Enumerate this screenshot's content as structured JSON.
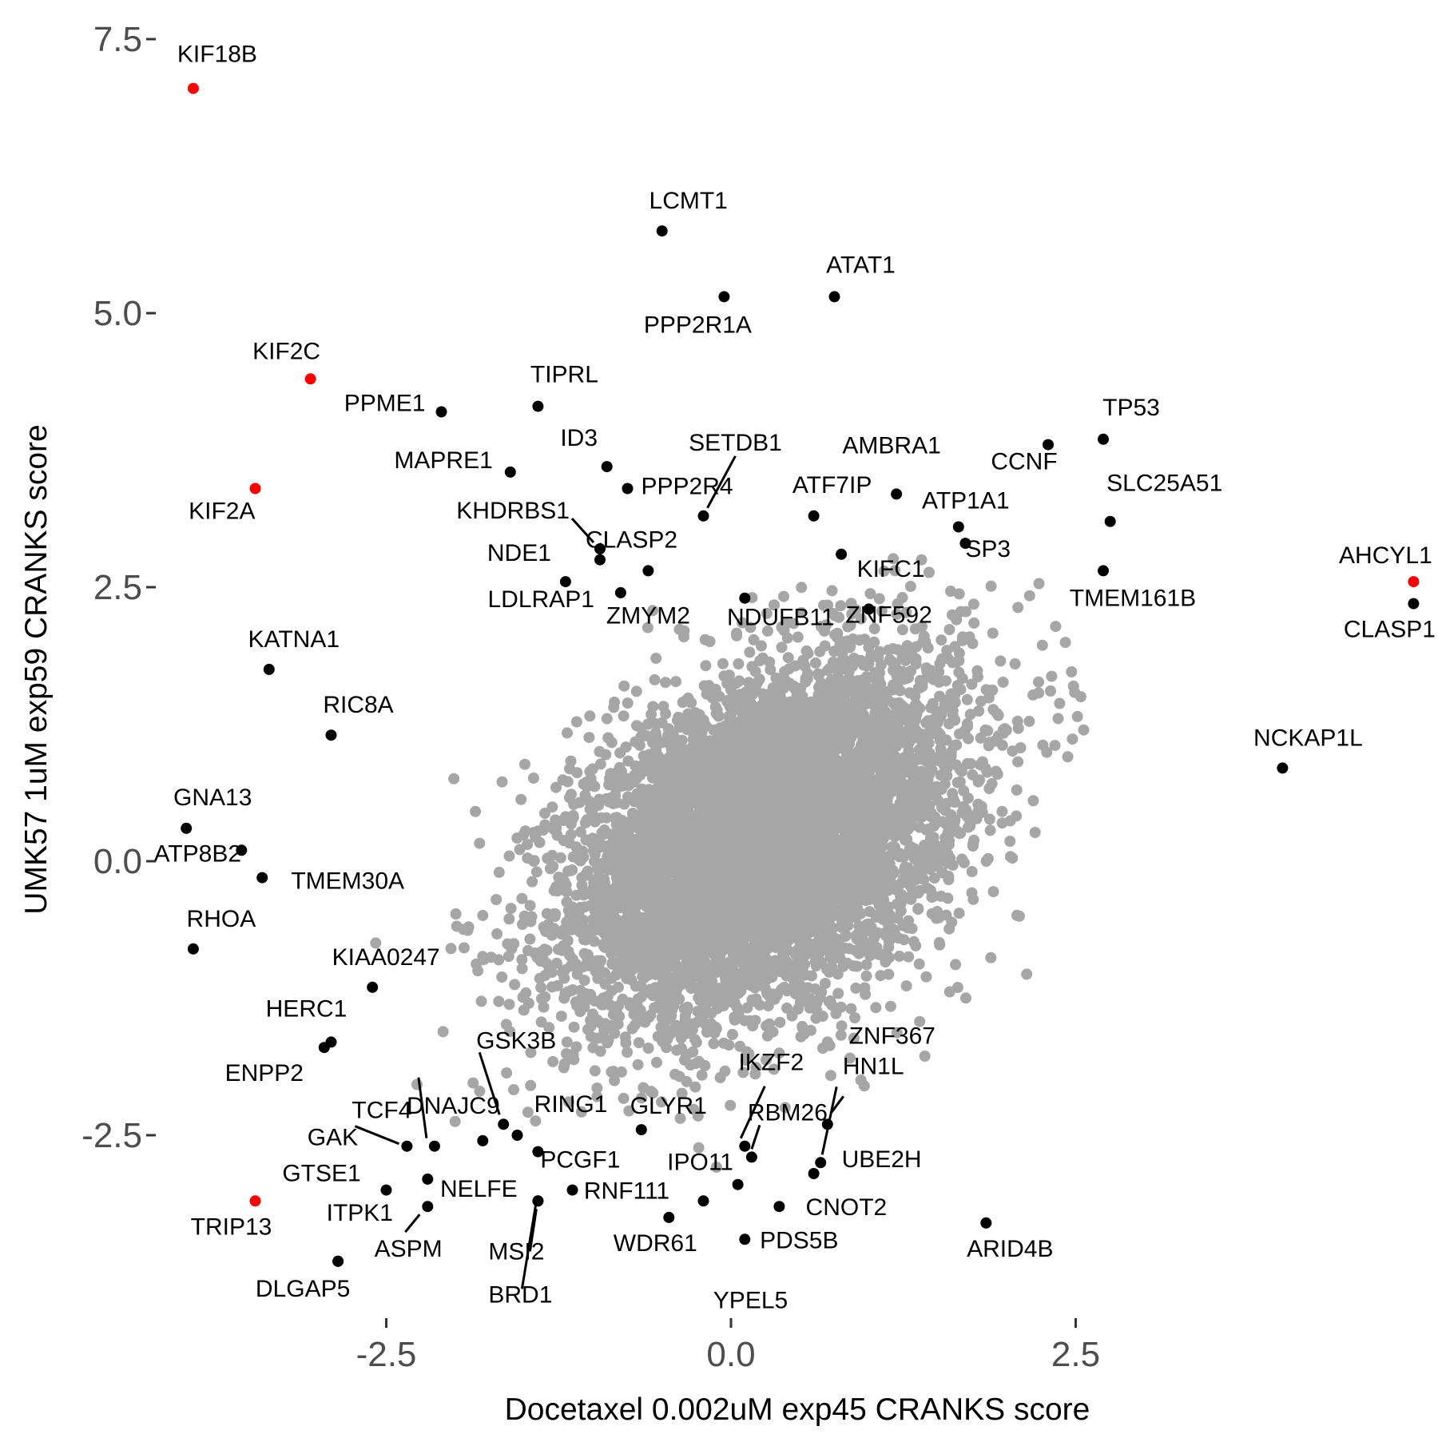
{
  "chart_data": {
    "type": "scatter",
    "title": "",
    "xlabel": "Docetaxel 0.002uM exp45 CRANKS score",
    "ylabel": "UMK57 1uM exp59 CRANKS score",
    "xlim": [
      -4.6,
      5.1
    ],
    "ylim": [
      -4.25,
      7.75
    ],
    "xticks": [
      -2.5,
      0.0,
      2.5
    ],
    "xtick_labels": [
      "-2.5",
      "0.0",
      "2.5"
    ],
    "yticks": [
      -2.5,
      0.0,
      2.5,
      5.0,
      7.5
    ],
    "ytick_labels": [
      "-2.5",
      "0.0",
      "2.5",
      "5.0",
      "7.5"
    ],
    "grid": false,
    "colors": {
      "background": "#ffffff",
      "tick_text": "#4d4d4d",
      "background_points": "#a6a6a6",
      "highlight": "#000000",
      "red": "#ff0000"
    },
    "background_cloud": {
      "center": [
        0.25,
        0.2
      ],
      "sd_x": 0.7,
      "sd_y": 0.8,
      "correlation": 0.4,
      "count": 7000
    },
    "points": [
      {
        "gene": "KIF18B",
        "x": -3.9,
        "y": 7.05,
        "color": "red"
      },
      {
        "gene": "KIF2C",
        "x": -3.05,
        "y": 4.4,
        "color": "red"
      },
      {
        "gene": "KIF2A",
        "x": -3.45,
        "y": 3.4,
        "color": "red"
      },
      {
        "gene": "TRIP13",
        "x": -3.45,
        "y": -3.1,
        "color": "red"
      },
      {
        "gene": "AHCYL1",
        "x": 4.95,
        "y": 2.55,
        "color": "red"
      },
      {
        "gene": "LCMT1",
        "x": -0.5,
        "y": 5.75,
        "color": "black"
      },
      {
        "gene": "ATAT1",
        "x": 0.75,
        "y": 5.15,
        "color": "black"
      },
      {
        "gene": "PPP2R1A",
        "x": -0.05,
        "y": 5.15,
        "color": "black"
      },
      {
        "gene": "PPME1",
        "x": -2.1,
        "y": 4.1,
        "color": "black"
      },
      {
        "gene": "TIPRL",
        "x": -1.4,
        "y": 4.15,
        "color": "black"
      },
      {
        "gene": "MAPRE1",
        "x": -1.6,
        "y": 3.55,
        "color": "black"
      },
      {
        "gene": "ID3",
        "x": -0.9,
        "y": 3.6,
        "color": "black"
      },
      {
        "gene": "PPP2R4",
        "x": -0.75,
        "y": 3.4,
        "color": "black"
      },
      {
        "gene": "SETDB1",
        "x": -0.2,
        "y": 3.15,
        "color": "black"
      },
      {
        "gene": "KHDRBS1",
        "x": -0.95,
        "y": 2.85,
        "color": "black"
      },
      {
        "gene": "CLASP2",
        "x": -0.95,
        "y": 2.75,
        "color": "black"
      },
      {
        "gene": "NDE1",
        "x": -1.2,
        "y": 2.55,
        "color": "black"
      },
      {
        "gene": "LDLRAP1",
        "x": -0.8,
        "y": 2.45,
        "color": "black"
      },
      {
        "gene": "ZMYM2",
        "x": -0.6,
        "y": 2.65,
        "color": "black"
      },
      {
        "gene": "NDUFB11",
        "x": 0.1,
        "y": 2.4,
        "color": "black"
      },
      {
        "gene": "ATF7IP",
        "x": 0.6,
        "y": 3.15,
        "color": "black"
      },
      {
        "gene": "AMBRA1",
        "x": 1.2,
        "y": 3.35,
        "color": "black"
      },
      {
        "gene": "ATP1A1",
        "x": 1.65,
        "y": 3.05,
        "color": "black"
      },
      {
        "gene": "KIFC1",
        "x": 0.8,
        "y": 2.8,
        "color": "black"
      },
      {
        "gene": "ZNF592",
        "x": 1.0,
        "y": 2.3,
        "color": "black"
      },
      {
        "gene": "TP53",
        "x": 2.7,
        "y": 3.85,
        "color": "black"
      },
      {
        "gene": "CCNF",
        "x": 2.3,
        "y": 3.8,
        "color": "black"
      },
      {
        "gene": "SLC25A51",
        "x": 2.75,
        "y": 3.1,
        "color": "black"
      },
      {
        "gene": "TMEM161B",
        "x": 2.7,
        "y": 2.65,
        "color": "black"
      },
      {
        "gene": "SP3",
        "x": 1.7,
        "y": 2.9,
        "color": "black"
      },
      {
        "gene": "CLASP1",
        "x": 4.95,
        "y": 2.35,
        "color": "black"
      },
      {
        "gene": "NCKAP1L",
        "x": 4.0,
        "y": 0.85,
        "color": "black"
      },
      {
        "gene": "KATNA1",
        "x": -3.35,
        "y": 1.75,
        "color": "black"
      },
      {
        "gene": "RIC8A",
        "x": -2.9,
        "y": 1.15,
        "color": "black"
      },
      {
        "gene": "GNA13",
        "x": -3.95,
        "y": 0.3,
        "color": "black"
      },
      {
        "gene": "ATP8B2",
        "x": -3.55,
        "y": 0.1,
        "color": "black"
      },
      {
        "gene": "TMEM30A",
        "x": -3.4,
        "y": -0.15,
        "color": "black"
      },
      {
        "gene": "RHOA",
        "x": -3.9,
        "y": -0.8,
        "color": "black"
      },
      {
        "gene": "KIAA0247",
        "x": -2.6,
        "y": -1.15,
        "color": "black"
      },
      {
        "gene": "HERC1",
        "x": -2.9,
        "y": -1.65,
        "color": "black"
      },
      {
        "gene": "ENPP2",
        "x": -2.95,
        "y": -1.7,
        "color": "black"
      },
      {
        "gene": "TCF4",
        "x": -2.15,
        "y": -2.6,
        "color": "black"
      },
      {
        "gene": "GSK3B",
        "x": -1.65,
        "y": -2.4,
        "color": "black"
      },
      {
        "gene": "DNAJC9",
        "x": -1.8,
        "y": -2.55,
        "color": "black"
      },
      {
        "gene": "GAK",
        "x": -2.35,
        "y": -2.6,
        "color": "black"
      },
      {
        "gene": "RING1",
        "x": -1.55,
        "y": -2.5,
        "color": "black"
      },
      {
        "gene": "GLYR1",
        "x": -0.65,
        "y": -2.45,
        "color": "black"
      },
      {
        "gene": "PCGF1",
        "x": -1.4,
        "y": -2.65,
        "color": "black"
      },
      {
        "gene": "GTSE1",
        "x": -2.5,
        "y": -3.0,
        "color": "black"
      },
      {
        "gene": "NELFE",
        "x": -2.2,
        "y": -2.9,
        "color": "black"
      },
      {
        "gene": "ITPK1",
        "x": -2.2,
        "y": -3.15,
        "color": "black"
      },
      {
        "gene": "MSI2",
        "x": -1.4,
        "y": -3.1,
        "color": "black"
      },
      {
        "gene": "BRD1",
        "x": -1.4,
        "y": -3.1,
        "color": "black"
      },
      {
        "gene": "RNF111",
        "x": -1.15,
        "y": -3.0,
        "color": "black"
      },
      {
        "gene": "WDR61",
        "x": -0.45,
        "y": -3.25,
        "color": "black"
      },
      {
        "gene": "IKZF2",
        "x": 0.1,
        "y": -2.6,
        "color": "black"
      },
      {
        "gene": "RBM26",
        "x": 0.15,
        "y": -2.7,
        "color": "black"
      },
      {
        "gene": "IPO11",
        "x": 0.05,
        "y": -2.95,
        "color": "black"
      },
      {
        "gene": "YPEL5",
        "x": -0.2,
        "y": -3.1,
        "color": "black"
      },
      {
        "gene": "PDS5B",
        "x": 0.1,
        "y": -3.45,
        "color": "black"
      },
      {
        "gene": "CNOT2",
        "x": 0.35,
        "y": -3.15,
        "color": "black"
      },
      {
        "gene": "HN1L",
        "x": 0.65,
        "y": -2.75,
        "color": "black"
      },
      {
        "gene": "ZNF367",
        "x": 0.7,
        "y": -2.4,
        "color": "black"
      },
      {
        "gene": "UBE2H",
        "x": 0.6,
        "y": -2.85,
        "color": "black"
      },
      {
        "gene": "ARID4B",
        "x": 1.85,
        "y": -3.3,
        "color": "black"
      },
      {
        "gene": "ASPM",
        "x": -2.85,
        "y": -3.65,
        "color": "black"
      },
      {
        "gene": "DLGAP5",
        "x": -2.85,
        "y": -3.65,
        "color": "black"
      }
    ]
  }
}
